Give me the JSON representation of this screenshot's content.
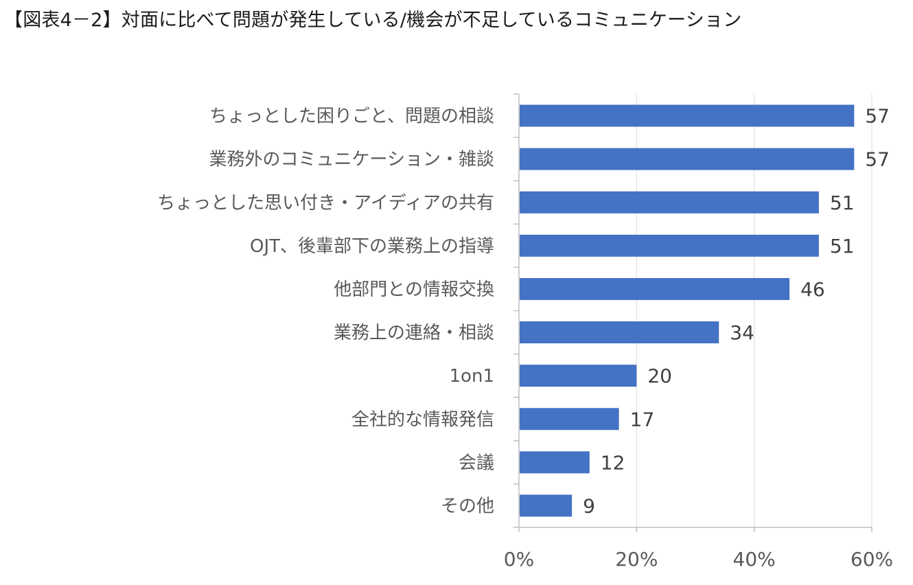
{
  "figure_title": "【図表4－2】対面に比べて問題が発生している/機会が不足しているコミュニケーション",
  "chart_data": {
    "type": "bar",
    "orientation": "horizontal",
    "title": "【図表4－2】対面に比べて問題が発生している/機会が不足しているコミュニケーション",
    "categories": [
      "ちょっとした困りごと、問題の相談",
      "業務外のコミュニケーション・雑談",
      "ちょっとした思い付き・アイディアの共有",
      "OJT、後輩部下の業務上の指導",
      "他部門との情報交換",
      "業務上の連絡・相談",
      "1on1",
      "全社的な情報発信",
      "会議",
      "その他"
    ],
    "values": [
      57,
      57,
      51,
      51,
      46,
      34,
      20,
      17,
      12,
      9
    ],
    "value_labels": [
      "57",
      "57",
      "51",
      "51",
      "46",
      "34",
      "20",
      "17",
      "12",
      "9"
    ],
    "xlim": [
      0,
      60
    ],
    "xticks": [
      0,
      20,
      40,
      60
    ],
    "xtick_labels": [
      "0%",
      "20%",
      "40%",
      "60%"
    ],
    "xlabel": "",
    "ylabel": "",
    "grid": true,
    "legend": "none",
    "bar_color": "#4472C4",
    "grid_color": "#D9D9D9",
    "axis_color": "#BFBFBF"
  }
}
